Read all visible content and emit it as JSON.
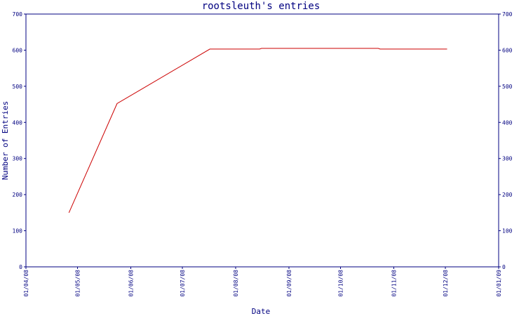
{
  "chart_data": {
    "type": "line",
    "title": "rootsleuth's entries",
    "xlabel": "Date",
    "ylabel": "Number of Entries",
    "ylim": [
      0,
      700
    ],
    "y_ticks": [
      0,
      100,
      200,
      300,
      400,
      500,
      600,
      700
    ],
    "x_range": [
      "2008-04-01",
      "2009-01-01"
    ],
    "x_ticks": [
      {
        "date": "2008-04-01",
        "label": "01/04/08"
      },
      {
        "date": "2008-05-01",
        "label": "01/05/08"
      },
      {
        "date": "2008-06-01",
        "label": "01/06/08"
      },
      {
        "date": "2008-07-01",
        "label": "01/07/08"
      },
      {
        "date": "2008-08-01",
        "label": "01/08/08"
      },
      {
        "date": "2008-09-01",
        "label": "01/09/08"
      },
      {
        "date": "2008-10-01",
        "label": "01/10/08"
      },
      {
        "date": "2008-11-01",
        "label": "01/11/08"
      },
      {
        "date": "2008-12-01",
        "label": "01/12/08"
      },
      {
        "date": "2009-01-01",
        "label": "01/01/09"
      }
    ],
    "right_axis_mirror": true,
    "grid": false,
    "series": [
      {
        "color": "#cc0000",
        "points": [
          {
            "x": "2008-04-26",
            "y": 150
          },
          {
            "x": "2008-05-24",
            "y": 452
          },
          {
            "x": "2008-07-17",
            "y": 603
          },
          {
            "x": "2008-08-15",
            "y": 603
          },
          {
            "x": "2008-08-16",
            "y": 605
          },
          {
            "x": "2008-10-23",
            "y": 605
          },
          {
            "x": "2008-10-24",
            "y": 603
          },
          {
            "x": "2008-12-02",
            "y": 603
          }
        ]
      }
    ]
  }
}
